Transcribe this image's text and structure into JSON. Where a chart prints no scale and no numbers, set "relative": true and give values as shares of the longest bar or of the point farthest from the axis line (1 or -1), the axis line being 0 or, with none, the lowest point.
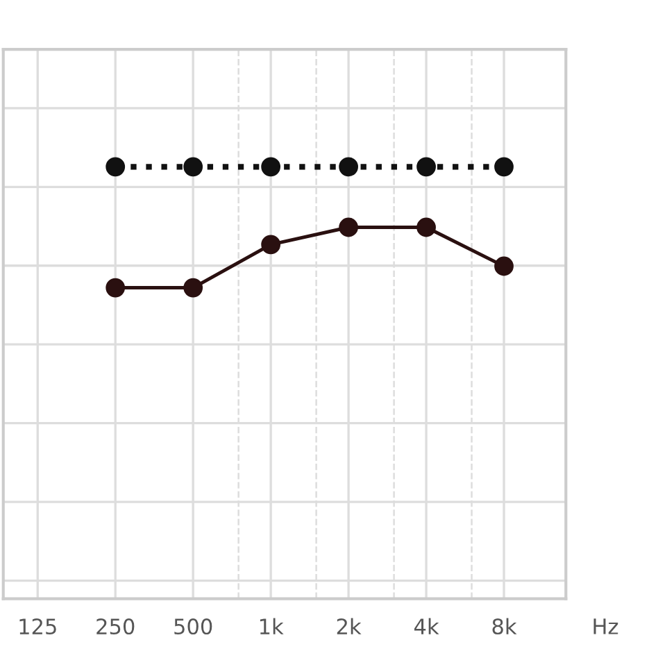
{
  "chart_data": {
    "type": "line",
    "relative": true,
    "log": "x",
    "xlabel": "Hz",
    "xlim": [
      92,
      13900
    ],
    "xticks": [
      125,
      250,
      500,
      {
        "value": 1000,
        "label": "1k"
      },
      {
        "value": 2000,
        "label": "2k"
      },
      {
        "value": 4000,
        "label": "4k"
      },
      {
        "value": 8000,
        "label": "8k"
      },
      {
        "value": 750,
        "label": null
      },
      {
        "value": 1500,
        "label": null
      },
      {
        "value": 3000,
        "label": null
      },
      {
        "value": 6000,
        "label": null
      }
    ],
    "tick_labels": "x",
    "grid": true,
    "marker": "circle",
    "legend": false,
    "series": [
      {
        "x": [
          250,
          500,
          1000,
          2000,
          4000,
          8000
        ],
        "values": [
          1,
          1,
          1,
          1,
          1,
          1
        ],
        "color": "#111111",
        "line_style": "dotted"
      },
      {
        "x": [
          250,
          500,
          1000,
          2000,
          4000,
          8000
        ],
        "values": [
          0.72,
          0.72,
          0.82,
          0.86,
          0.86,
          0.77
        ],
        "color": "#2a1010",
        "line_style": "solid"
      }
    ]
  }
}
